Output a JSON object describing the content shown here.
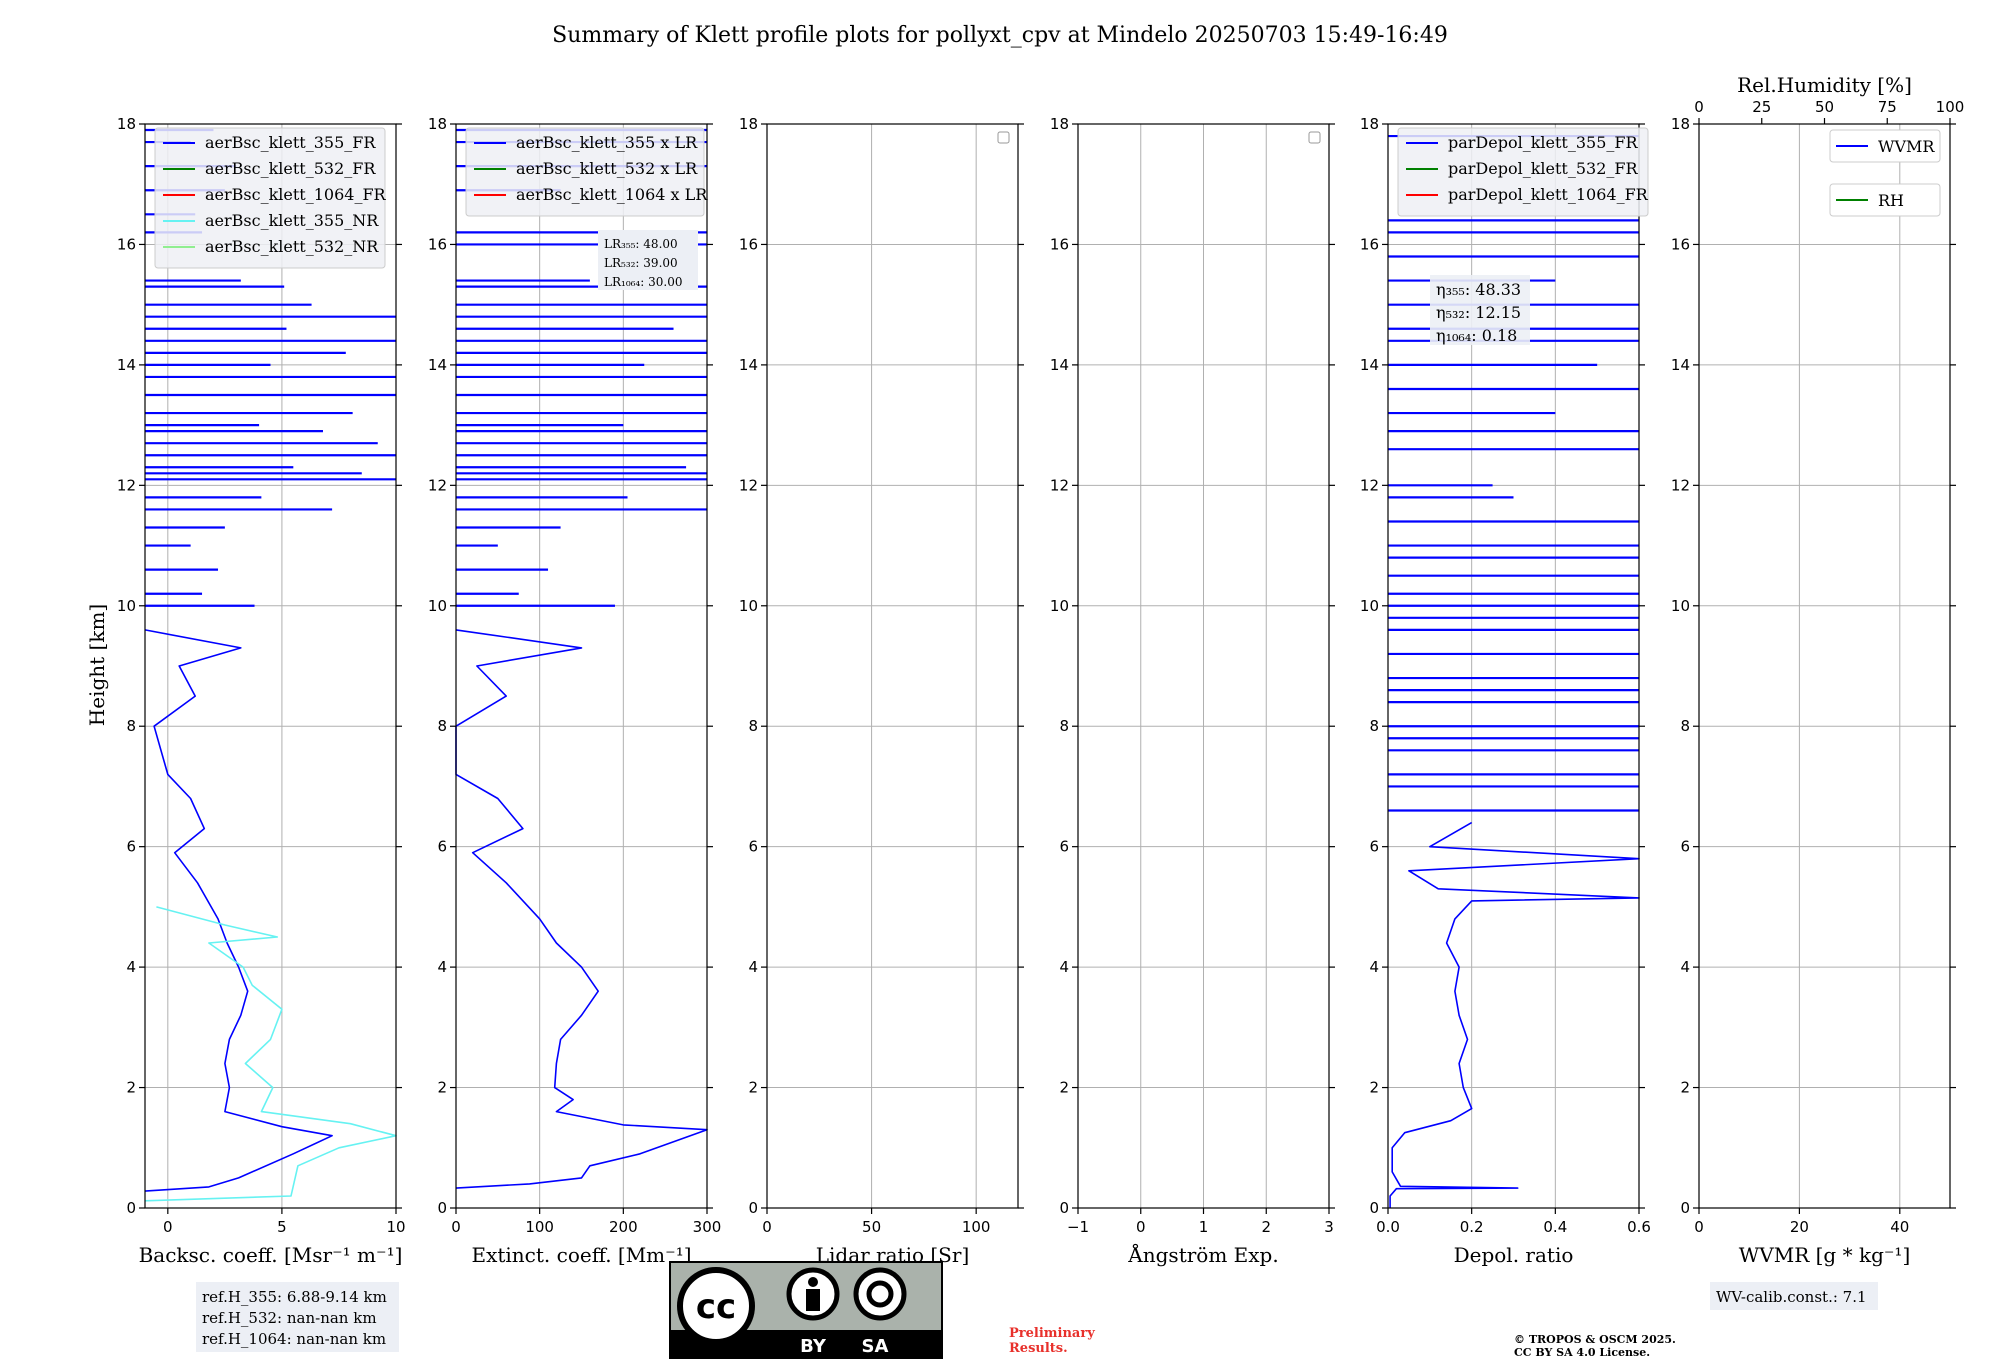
{
  "title": "Summary of Klett profile plots for pollyxt_cpv at Mindelo 20250703 15:49-16:49",
  "y_axis_label": "Height [km]",
  "colors": {
    "blue": "#0000ff",
    "green": "#008000",
    "red": "#ff0000",
    "cyan": "#66f2f2",
    "lightgreen": "#90ee90",
    "grid": "#b0b0b0",
    "legend_bg": "#eef0f5"
  },
  "chart_data": [
    {
      "type": "line",
      "xlabel": "Backsc. coeff. [Msr⁻¹ m⁻¹]",
      "xlim": [
        -1,
        10
      ],
      "ylim": [
        0,
        18
      ],
      "xticks": [
        "0",
        "5",
        "10"
      ],
      "xtick_values": [
        0,
        5,
        10
      ],
      "grid": true,
      "legend_position": "upper-left",
      "legend": [
        "aerBsc_klett_355_FR",
        "aerBsc_klett_532_FR",
        "aerBsc_klett_1064_FR",
        "aerBsc_klett_355_NR",
        "aerBsc_klett_532_NR"
      ],
      "series": [
        {
          "name": "aerBsc_klett_355_FR",
          "color": "blue",
          "points": [
            [
              -1,
              0.28
            ],
            [
              1.8,
              0.35
            ],
            [
              3.1,
              0.5
            ],
            [
              5.5,
              0.9
            ],
            [
              7.2,
              1.2
            ],
            [
              5,
              1.35
            ],
            [
              2.5,
              1.6
            ],
            [
              2.7,
              2.0
            ],
            [
              2.5,
              2.4
            ],
            [
              2.7,
              2.8
            ],
            [
              3.2,
              3.2
            ],
            [
              3.5,
              3.6
            ],
            [
              3.1,
              4.0
            ],
            [
              2.6,
              4.4
            ],
            [
              2.2,
              4.8
            ],
            [
              1.3,
              5.4
            ],
            [
              0.3,
              5.9
            ],
            [
              1.6,
              6.3
            ],
            [
              1.0,
              6.8
            ],
            [
              0.0,
              7.2
            ],
            [
              -0.6,
              8.0
            ],
            [
              1.2,
              8.5
            ],
            [
              0.5,
              9.0
            ],
            [
              3.2,
              9.3
            ],
            [
              -1,
              9.6
            ]
          ]
        },
        {
          "name": "aerBsc_klett_355_NR",
          "color": "cyan",
          "points": [
            [
              -1,
              0.12
            ],
            [
              5.4,
              0.2
            ],
            [
              5.7,
              0.7
            ],
            [
              7.5,
              1.0
            ],
            [
              10,
              1.2
            ],
            [
              8,
              1.4
            ],
            [
              4.1,
              1.6
            ],
            [
              4.6,
              2.0
            ],
            [
              3.4,
              2.4
            ],
            [
              4.5,
              2.8
            ],
            [
              5.0,
              3.3
            ],
            [
              3.7,
              3.7
            ],
            [
              3.3,
              4.0
            ],
            [
              1.8,
              4.4
            ],
            [
              4.8,
              4.5
            ],
            [
              2.5,
              4.7
            ],
            [
              -0.5,
              5.0
            ]
          ]
        }
      ],
      "spikes": [
        {
          "color": "blue",
          "heights": [
            10.0,
            10.2,
            10.6,
            11.0,
            11.3,
            11.6,
            11.8,
            12.1,
            12.2,
            12.3,
            12.5,
            12.7,
            12.9,
            13.0,
            13.2,
            13.5,
            13.8,
            14.0,
            14.2,
            14.4,
            14.6,
            14.8,
            15.0,
            15.3,
            15.4,
            16.2,
            16.5,
            16.9,
            17.3,
            17.7,
            17.9
          ],
          "values": [
            3.8,
            1.5,
            2.2,
            1.0,
            2.5,
            7.2,
            4.1,
            10,
            8.5,
            5.5,
            10,
            9.2,
            6.8,
            4.0,
            8.1,
            10,
            10,
            4.5,
            7.8,
            10,
            5.2,
            10,
            6.3,
            5.1,
            3.2,
            1.5,
            1.2,
            2.5,
            3.0,
            1.0,
            2.0
          ]
        }
      ],
      "annotation": [
        "ref.H_355: 6.88-9.14 km",
        "ref.H_532: nan-nan km",
        "ref.H_1064: nan-nan km"
      ]
    },
    {
      "type": "line",
      "xlabel": "Extinct. coeff. [Mm⁻¹]",
      "xlim": [
        0,
        300
      ],
      "ylim": [
        0,
        18
      ],
      "xticks": [
        "0",
        "100",
        "200",
        "300"
      ],
      "xtick_values": [
        0,
        100,
        200,
        300
      ],
      "grid": true,
      "legend_position": "upper-left",
      "legend": [
        "aerBsc_klett_355 x LR",
        "aerBsc_klett_532 x LR",
        "aerBsc_klett_1064 x LR"
      ],
      "series": [
        {
          "name": "aerBsc_klett_355 x LR",
          "color": "blue",
          "points": [
            [
              0,
              0.33
            ],
            [
              88,
              0.4
            ],
            [
              150,
              0.5
            ],
            [
              160,
              0.7
            ],
            [
              220,
              0.9
            ],
            [
              300,
              1.3
            ],
            [
              200,
              1.38
            ],
            [
              120,
              1.6
            ],
            [
              140,
              1.8
            ],
            [
              118,
              2.0
            ],
            [
              120,
              2.4
            ],
            [
              125,
              2.8
            ],
            [
              150,
              3.2
            ],
            [
              170,
              3.6
            ],
            [
              150,
              4.0
            ],
            [
              120,
              4.4
            ],
            [
              100,
              4.8
            ],
            [
              60,
              5.4
            ],
            [
              20,
              5.9
            ],
            [
              80,
              6.3
            ],
            [
              50,
              6.8
            ],
            [
              0,
              7.2
            ],
            [
              -5,
              8.0
            ],
            [
              60,
              8.5
            ],
            [
              25,
              9.0
            ],
            [
              150,
              9.3
            ],
            [
              0,
              9.6
            ]
          ]
        }
      ],
      "spikes": [
        {
          "color": "blue",
          "heights": [
            10.0,
            10.2,
            10.6,
            11.0,
            11.3,
            11.6,
            11.8,
            12.1,
            12.2,
            12.3,
            12.5,
            12.7,
            12.9,
            13.0,
            13.2,
            13.5,
            13.8,
            14.0,
            14.2,
            14.4,
            14.6,
            14.8,
            15.0,
            15.3,
            15.4,
            16.0,
            16.2,
            16.9,
            17.3,
            17.7,
            17.9
          ],
          "values": [
            190,
            75,
            110,
            50,
            125,
            300,
            205,
            300,
            300,
            275,
            300,
            300,
            300,
            200,
            300,
            300,
            300,
            225,
            300,
            300,
            260,
            300,
            300,
            300,
            160,
            300,
            300,
            125,
            300,
            300,
            300
          ]
        }
      ],
      "annotation": [
        "LR₃₅₅: 48.00",
        "LR₅₃₂: 39.00",
        "LR₁₀₆₄: 30.00"
      ]
    },
    {
      "type": "line",
      "xlabel": "Lidar ratio [Sr]",
      "xlim": [
        0,
        120
      ],
      "ylim": [
        0,
        18
      ],
      "xticks": [
        "0",
        "50",
        "100"
      ],
      "xtick_values": [
        0,
        50,
        100
      ],
      "grid": true,
      "legend_position": "upper-right",
      "series": []
    },
    {
      "type": "line",
      "xlabel": "Ångström Exp.",
      "xlim": [
        -1,
        3
      ],
      "ylim": [
        0,
        18
      ],
      "xticks": [
        "−1",
        "0",
        "1",
        "2",
        "3"
      ],
      "xtick_values": [
        -1,
        0,
        1,
        2,
        3
      ],
      "grid": true,
      "legend_position": "upper-right",
      "series": []
    },
    {
      "type": "line",
      "xlabel": "Depol. ratio",
      "xlim": [
        0,
        0.6
      ],
      "ylim": [
        0,
        18
      ],
      "xticks": [
        "0.0",
        "0.2",
        "0.4",
        "0.6"
      ],
      "xtick_values": [
        0,
        0.2,
        0.4,
        0.6
      ],
      "grid": true,
      "legend_position": "upper-left",
      "legend": [
        "parDepol_klett_355_FR",
        "parDepol_klett_532_FR",
        "parDepol_klett_1064_FR"
      ],
      "series": [
        {
          "name": "parDepol_klett_355_FR",
          "color": "blue",
          "points": [
            [
              0.005,
              0.0
            ],
            [
              0.005,
              0.2
            ],
            [
              0.02,
              0.32
            ],
            [
              0.31,
              0.33
            ],
            [
              0.03,
              0.36
            ],
            [
              0.01,
              0.6
            ],
            [
              0.01,
              1.0
            ],
            [
              0.04,
              1.25
            ],
            [
              0.15,
              1.45
            ],
            [
              0.2,
              1.65
            ],
            [
              0.18,
              2.0
            ],
            [
              0.17,
              2.4
            ],
            [
              0.19,
              2.8
            ],
            [
              0.17,
              3.2
            ],
            [
              0.16,
              3.6
            ],
            [
              0.17,
              4.0
            ],
            [
              0.14,
              4.4
            ],
            [
              0.16,
              4.8
            ],
            [
              0.2,
              5.1
            ],
            [
              0.6,
              5.15
            ],
            [
              0.12,
              5.3
            ],
            [
              0.05,
              5.6
            ],
            [
              0.6,
              5.8
            ],
            [
              0.1,
              6.0
            ],
            [
              0.2,
              6.4
            ]
          ]
        }
      ],
      "spikes": [
        {
          "color": "blue",
          "heights": [
            6.6,
            7.0,
            7.2,
            7.6,
            7.8,
            8.0,
            8.4,
            8.6,
            8.8,
            9.2,
            9.6,
            9.8,
            10.0,
            10.2,
            10.5,
            10.8,
            11.0,
            11.4,
            11.8,
            12.0,
            12.6,
            12.9,
            13.2,
            13.6,
            14.0,
            14.4,
            14.6,
            15.0,
            15.4,
            15.8,
            16.2,
            16.4,
            17.8
          ],
          "values": [
            0.6,
            0.6,
            0.6,
            0.6,
            0.6,
            0.6,
            0.6,
            0.6,
            0.6,
            0.6,
            0.6,
            0.6,
            0.6,
            0.6,
            0.6,
            0.6,
            0.6,
            0.6,
            0.3,
            0.25,
            0.6,
            0.6,
            0.4,
            0.6,
            0.5,
            0.6,
            0.6,
            0.6,
            0.4,
            0.6,
            0.6,
            0.6,
            0.6
          ]
        }
      ],
      "annotation": [
        "η₃₅₅: 48.33",
        "η₅₃₂: 12.15",
        "η₁₀₆₄: 0.18"
      ]
    },
    {
      "type": "line",
      "xlabel": "WVMR [g * kg⁻¹]",
      "xlim": [
        0,
        50
      ],
      "ylim": [
        0,
        18
      ],
      "xticks": [
        "0",
        "20",
        "40"
      ],
      "xtick_values": [
        0,
        20,
        40
      ],
      "top_xlabel": "Rel.Humidity [%]",
      "top_xlim": [
        0,
        100
      ],
      "top_xticks": [
        "0",
        "25",
        "50",
        "75",
        "100"
      ],
      "top_xtick_values": [
        0,
        25,
        50,
        75,
        100
      ],
      "grid": true,
      "legend_position": "upper-right",
      "legend": [
        "WVMR",
        "RH"
      ],
      "series": [],
      "annotation": [
        "WV-calib.const.: 7.1"
      ]
    }
  ],
  "y_ticks": [
    "0",
    "2",
    "4",
    "6",
    "8",
    "10",
    "12",
    "14",
    "16",
    "18"
  ],
  "y_tick_values": [
    0,
    2,
    4,
    6,
    8,
    10,
    12,
    14,
    16,
    18
  ],
  "footer": {
    "license_badge": {
      "cc": "cc",
      "by": "BY",
      "sa": "SA"
    },
    "preliminary": [
      "Preliminary",
      "Results."
    ],
    "copyright": [
      "© TROPOS & OSCM 2025.",
      "CC BY SA 4.0 License."
    ]
  }
}
